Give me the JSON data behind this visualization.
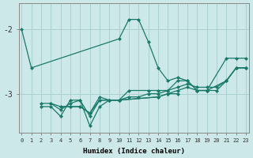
{
  "xlabel": "Humidex (Indice chaleur)",
  "bg_color": "#cce8e8",
  "grid_color": "#aad0d0",
  "line_color": "#1a7a6a",
  "ylim": [
    -3.6,
    -1.6
  ],
  "yticks": [
    -3.0,
    -2.0
  ],
  "xlim": [
    -0.3,
    23.3
  ],
  "x_ticks": [
    0,
    1,
    2,
    3,
    4,
    5,
    6,
    7,
    8,
    9,
    10,
    11,
    12,
    13,
    14,
    15,
    16,
    17,
    18,
    19,
    20,
    21,
    22,
    23
  ],
  "lines": [
    {
      "comment": "Line1: high arc - starts at 0=-2, dips to 1=-2.6, gap, resurges at 10=-2.15, peaks 11=-1.85, 12=-1.85, drops 13=-2.2, 14=-2.6, 15=-2.8, 16=-2.75, 17=-2.8, 18=-2.95, 19=-2.95, gap, 21=-2.45, 22=-2.45, 23=-2.45",
      "x": [
        0,
        1,
        10,
        11,
        12,
        13,
        14,
        15,
        16,
        17,
        18,
        19,
        21,
        22,
        23
      ],
      "y": [
        -2.0,
        -2.6,
        -2.15,
        -1.85,
        -1.85,
        -2.2,
        -2.6,
        -2.8,
        -2.75,
        -2.8,
        -2.95,
        -2.95,
        -2.45,
        -2.45,
        -2.45
      ]
    },
    {
      "x": [
        2,
        3,
        4,
        5,
        6,
        7,
        8,
        9,
        10,
        11,
        13,
        14,
        15,
        16,
        17,
        18,
        19,
        20,
        21,
        22,
        23
      ],
      "y": [
        -3.15,
        -3.15,
        -3.2,
        -3.2,
        -3.2,
        -3.3,
        -3.05,
        -3.1,
        -3.1,
        -2.95,
        -2.95,
        -2.95,
        -2.95,
        -2.8,
        -2.8,
        -2.95,
        -2.95,
        -2.95,
        -2.8,
        -2.6,
        -2.6
      ]
    },
    {
      "x": [
        2,
        3,
        4,
        5,
        6,
        7,
        8,
        9,
        10,
        14,
        15,
        16
      ],
      "y": [
        -3.2,
        -3.2,
        -3.35,
        -3.1,
        -3.1,
        -3.5,
        -3.2,
        -3.1,
        -3.1,
        -3.05,
        -3.0,
        -3.0
      ]
    },
    {
      "x": [
        3,
        4,
        5,
        6,
        7,
        8,
        9,
        10,
        14,
        15,
        16,
        17,
        18,
        19,
        21,
        22,
        23
      ],
      "y": [
        -3.15,
        -3.25,
        -3.15,
        -3.1,
        -3.35,
        -3.1,
        -3.1,
        -3.1,
        -3.05,
        -3.0,
        -2.95,
        -2.9,
        -2.95,
        -2.95,
        -2.8,
        -2.6,
        -2.6
      ]
    },
    {
      "x": [
        4,
        5,
        6,
        7,
        8,
        9,
        10,
        11,
        12,
        13,
        14,
        15,
        16,
        17,
        18,
        19,
        20,
        21,
        22,
        23
      ],
      "y": [
        -3.2,
        -3.2,
        -3.2,
        -3.3,
        -3.1,
        -3.1,
        -3.1,
        -3.05,
        -3.05,
        -3.0,
        -3.0,
        -2.95,
        -2.9,
        -2.85,
        -2.9,
        -2.9,
        -2.9,
        -2.8,
        -2.6,
        -2.6
      ]
    }
  ]
}
